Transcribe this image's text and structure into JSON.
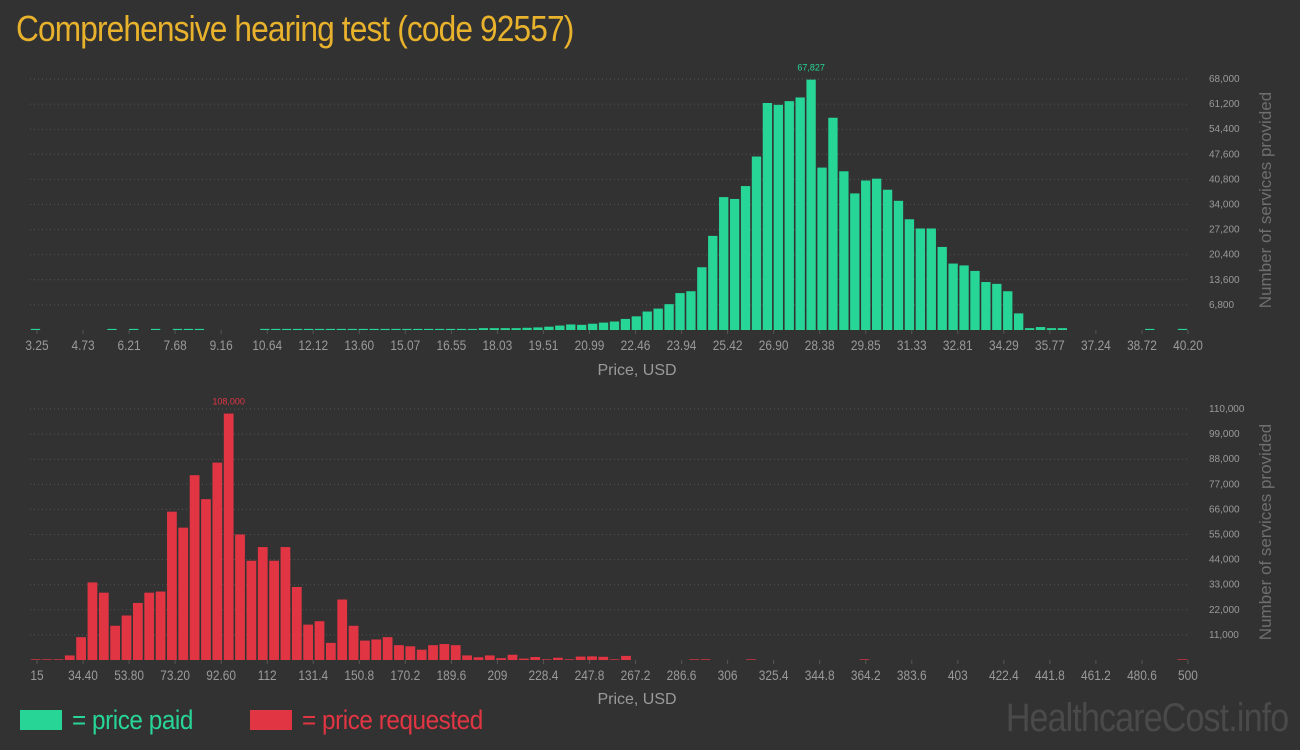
{
  "title": "Comprehensive hearing test (code 92557)",
  "watermark": "HealthcareCost.info",
  "legend": {
    "paid": {
      "label": "= price paid",
      "color": "#27d597"
    },
    "requested": {
      "label": "= price requested",
      "color": "#e23543"
    }
  },
  "colors": {
    "background": "#323232",
    "grid": "#555555",
    "axis_text": "#9a9a9a"
  },
  "chart_data": [
    {
      "type": "bar",
      "series_color": "#27d597",
      "xlabel": "Price, USD",
      "ylabel": "Number of services provided",
      "ylim": [
        0,
        68000
      ],
      "yticks": [
        "6,800",
        "13,600",
        "20,400",
        "27,200",
        "34,000",
        "40,800",
        "47,600",
        "54,400",
        "61,200",
        "68,000"
      ],
      "xticks": [
        "3.25",
        "4.73",
        "6.21",
        "7.68",
        "9.16",
        "10.64",
        "12.12",
        "13.60",
        "15.07",
        "16.55",
        "18.03",
        "19.51",
        "20.99",
        "22.46",
        "23.94",
        "25.42",
        "26.90",
        "28.38",
        "29.85",
        "31.33",
        "32.81",
        "34.29",
        "35.77",
        "37.24",
        "38.72",
        "40.20"
      ],
      "max_label": "67,827",
      "values": [
        300,
        0,
        0,
        0,
        0,
        0,
        0,
        300,
        0,
        300,
        0,
        300,
        0,
        300,
        300,
        300,
        0,
        0,
        0,
        0,
        0,
        300,
        300,
        300,
        300,
        300,
        300,
        300,
        300,
        300,
        300,
        300,
        300,
        300,
        300,
        300,
        300,
        300,
        300,
        300,
        300,
        500,
        500,
        500,
        500,
        600,
        700,
        900,
        1200,
        1500,
        1400,
        1700,
        2000,
        2300,
        3000,
        3700,
        5000,
        5800,
        7000,
        10000,
        10500,
        17000,
        25500,
        36000,
        35500,
        39000,
        47000,
        61500,
        61000,
        62000,
        63000,
        67827,
        44000,
        57500,
        43000,
        37000,
        40500,
        41000,
        38000,
        35000,
        30000,
        27500,
        27500,
        22500,
        18000,
        17500,
        16000,
        13000,
        12500,
        10500,
        4500,
        500,
        800,
        500,
        500,
        0,
        0,
        0,
        0,
        0,
        0,
        0,
        300,
        0,
        0,
        300
      ]
    },
    {
      "type": "bar",
      "series_color": "#e23543",
      "xlabel": "Price, USD",
      "ylabel": "Number of services provided",
      "ylim": [
        0,
        110000
      ],
      "yticks": [
        "11,000",
        "22,000",
        "33,000",
        "44,000",
        "55,000",
        "66,000",
        "77,000",
        "88,000",
        "99,000",
        "110,000"
      ],
      "xticks": [
        "15",
        "34.40",
        "53.80",
        "73.20",
        "92.60",
        "112",
        "131.4",
        "150.8",
        "170.2",
        "189.6",
        "209",
        "228.4",
        "247.8",
        "267.2",
        "286.6",
        "306",
        "325.4",
        "344.8",
        "364.2",
        "383.6",
        "403",
        "422.4",
        "441.8",
        "461.2",
        "480.6",
        "500"
      ],
      "max_label": "108,000",
      "values": [
        300,
        300,
        300,
        2000,
        10000,
        34000,
        29500,
        15000,
        19500,
        25000,
        29500,
        30000,
        65000,
        58000,
        81000,
        70500,
        86500,
        108000,
        55000,
        43500,
        49500,
        43500,
        49500,
        32000,
        15500,
        17000,
        7500,
        26500,
        15000,
        8500,
        9000,
        10000,
        6500,
        6000,
        4500,
        6500,
        7000,
        6500,
        2000,
        1200,
        2000,
        800,
        2300,
        600,
        1300,
        300,
        1000,
        300,
        1500,
        1600,
        1400,
        300,
        1800,
        0,
        0,
        0,
        0,
        0,
        300,
        300,
        0,
        0,
        0,
        300,
        0,
        0,
        0,
        0,
        0,
        0,
        0,
        0,
        0,
        300,
        0,
        0,
        0,
        0,
        0,
        0,
        0,
        0,
        0,
        0,
        0,
        0,
        0,
        0,
        0,
        0,
        0,
        0,
        0,
        0,
        0,
        0,
        0,
        0,
        0,
        0,
        0,
        300
      ]
    }
  ]
}
